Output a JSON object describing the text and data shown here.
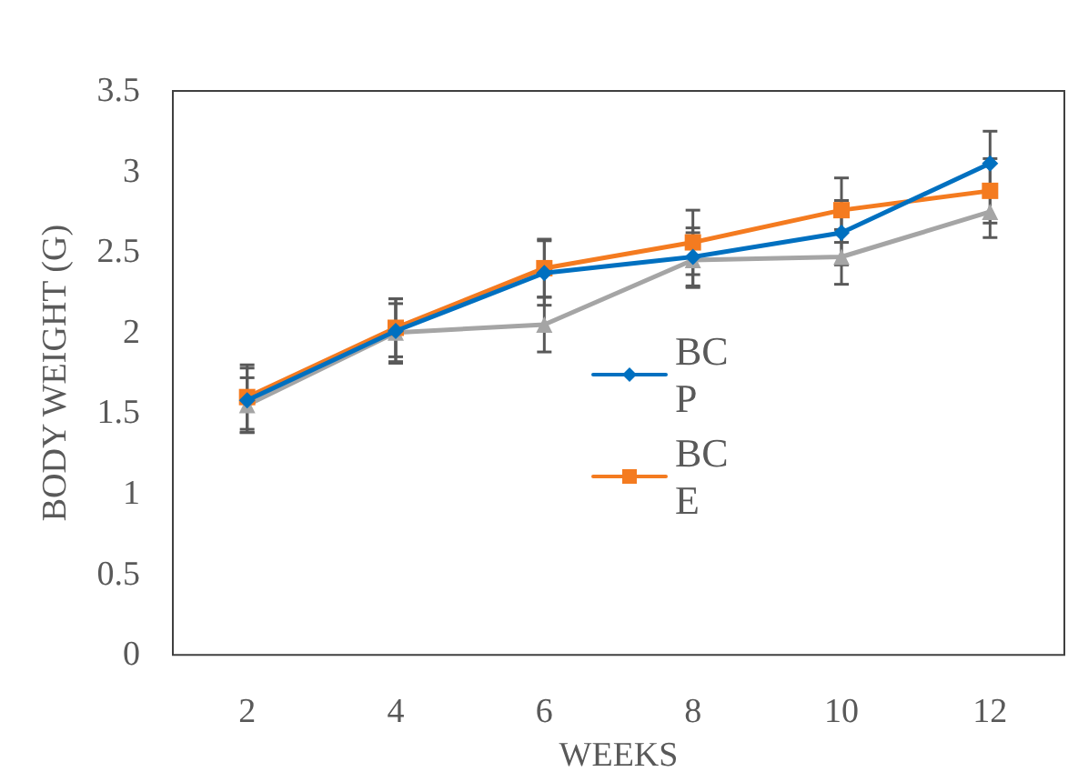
{
  "chart_data": {
    "type": "line",
    "xlabel": "WEEKS",
    "ylabel": "BODY WEIGHT (G)",
    "categories": [
      "2",
      "4",
      "6",
      "8",
      "10",
      "12"
    ],
    "series": [
      {
        "name": "BCP",
        "color": "#0070c0",
        "marker": "diamond",
        "values": [
          1.58,
          2.01,
          2.37,
          2.47,
          2.62,
          3.05
        ],
        "errors": [
          0.2,
          0.2,
          0.2,
          0.18,
          0.2,
          0.2
        ]
      },
      {
        "name": "BCE",
        "color": "#f47b20",
        "marker": "square",
        "values": [
          1.6,
          2.03,
          2.4,
          2.56,
          2.76,
          2.88
        ],
        "errors": [
          0.2,
          0.18,
          0.18,
          0.2,
          0.2,
          0.2
        ]
      },
      {
        "color": "#a5a5a5",
        "marker": "triangle",
        "values": [
          1.55,
          2.0,
          2.05,
          2.45,
          2.47,
          2.75
        ],
        "errors": [
          0.17,
          0.18,
          0.17,
          0.17,
          0.17,
          0.16
        ]
      }
    ],
    "ylim": [
      0,
      3.5
    ],
    "yticks": [
      0,
      0.5,
      1,
      1.5,
      2,
      2.5,
      3,
      3.5
    ],
    "grid": false,
    "legend": "center"
  }
}
